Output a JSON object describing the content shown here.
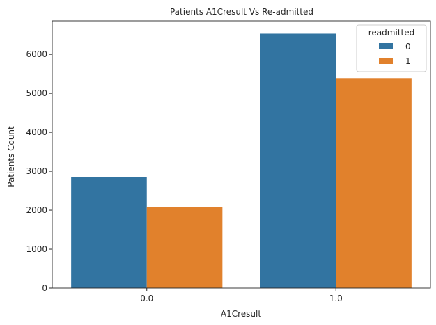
{
  "chart_data": {
    "type": "bar",
    "title": "Patients A1Cresult Vs Re-admitted",
    "xlabel": "A1Cresult",
    "ylabel": "Patients Count",
    "categories": [
      "0.0",
      "1.0"
    ],
    "series": [
      {
        "name": "0",
        "values": [
          2850,
          6530
        ],
        "color": "#3274a1"
      },
      {
        "name": "1",
        "values": [
          2090,
          5390
        ],
        "color": "#e1812c"
      }
    ],
    "ylim": [
      0,
      6860
    ],
    "yticks": [
      0,
      1000,
      2000,
      3000,
      4000,
      5000,
      6000
    ],
    "legend": {
      "title": "readmitted",
      "placement": "top-right"
    },
    "grid": false
  }
}
